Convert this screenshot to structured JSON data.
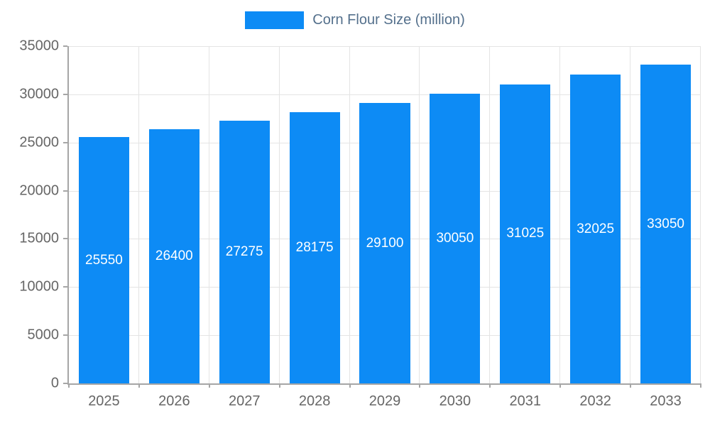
{
  "chart_data": {
    "type": "bar",
    "title": "Corn Flour Size (million)",
    "categories": [
      "2025",
      "2026",
      "2027",
      "2028",
      "2029",
      "2030",
      "2031",
      "2032",
      "2033"
    ],
    "values": [
      25550,
      26400,
      27275,
      28175,
      29100,
      30050,
      31025,
      32025,
      33050
    ],
    "xlabel": "",
    "ylabel": "",
    "ylim": [
      0,
      35000
    ],
    "yticks": [
      0,
      5000,
      10000,
      15000,
      20000,
      25000,
      30000,
      35000
    ],
    "grid": true,
    "legend_position": "top",
    "value_labels": "inside-center",
    "colors": {
      "bar": "#0d8bf5",
      "value_label": "#ffffff",
      "grid": "#e4e4e4",
      "axis": "#a6a6a6",
      "tick_label": "#666666",
      "legend_text": "#54708c"
    }
  }
}
